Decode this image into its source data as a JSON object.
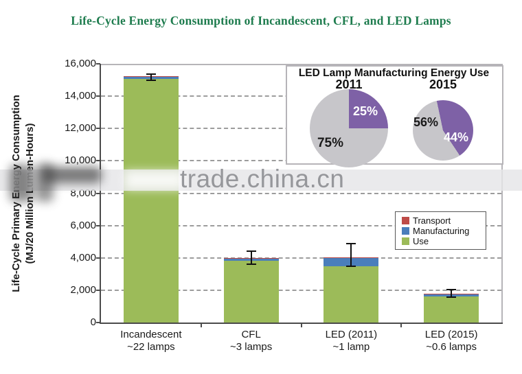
{
  "title": {
    "text": "Life-Cycle Energy Consumption of Incandescent, CFL, and LED Lamps",
    "color": "#1E7C4E"
  },
  "watermark": {
    "text": "trade.china.cn"
  },
  "chart_data": {
    "type": "bar",
    "stacked": true,
    "title": "Life-Cycle Energy Consumption of Incandescent, CFL, and LED Lamps",
    "ylabel": "Life-Cycle Primary Energy Consumption (MJ/20 Million Lumen-Hours)",
    "ylabel_lines": [
      "Life-Cycle Primary Energy Consumption",
      "(MJ/20 Million Lumen-Hours)"
    ],
    "ylim": [
      0,
      16000
    ],
    "ytick_step": 2000,
    "ytick_labels": [
      "0",
      "2,000",
      "4,000",
      "6,000",
      "8,000",
      "10,000",
      "12,000",
      "14,000",
      "16,000"
    ],
    "grid": "horizontal-dashed",
    "categories": [
      "Incandescent",
      "CFL",
      "LED (2011)",
      "LED (2015)"
    ],
    "category_sublabels": [
      "~22 lamps",
      "~3 lamps",
      "~1 lamp",
      "~0.6 lamps"
    ],
    "series": [
      {
        "name": "Use",
        "color": "#9CBB59",
        "values": [
          15070,
          3820,
          3500,
          1610
        ]
      },
      {
        "name": "Manufacturing",
        "color": "#4A7EBB",
        "values": [
          120,
          130,
          510,
          170
        ]
      },
      {
        "name": "Transport",
        "color": "#BE4B48",
        "values": [
          40,
          40,
          10,
          10
        ]
      }
    ],
    "totals_approx": [
      15230,
      3990,
      4020,
      1790
    ],
    "error_bars": {
      "low": [
        15000,
        3600,
        3500,
        1560
      ],
      "high": [
        15350,
        4400,
        4900,
        2050
      ]
    },
    "legend": {
      "position": "middle-right",
      "entries": [
        {
          "label": "Transport",
          "color": "#BE4B48"
        },
        {
          "label": "Manufacturing",
          "color": "#4A7EBB"
        },
        {
          "label": "Use",
          "color": "#9CBB59"
        }
      ]
    }
  },
  "inset": {
    "title": "LED Lamp Manufacturing Energy Use",
    "pies": [
      {
        "year": "2011",
        "start_angle": 0,
        "slices": [
          {
            "name": "manufacturing-share",
            "label": "25%",
            "value": 25,
            "color": "#7E61A6",
            "text_color": "#ffffff"
          },
          {
            "name": "remainder",
            "label": "75%",
            "value": 75,
            "color": "#C7C6CA",
            "text_color": "#1a1a1a"
          }
        ]
      },
      {
        "year": "2015",
        "start_angle": -12,
        "slices": [
          {
            "name": "manufacturing-share",
            "label": "44%",
            "value": 44,
            "color": "#7E61A6",
            "text_color": "#ffffff"
          },
          {
            "name": "remainder",
            "label": "56%",
            "value": 56,
            "color": "#C7C6CA",
            "text_color": "#1a1a1a"
          }
        ]
      }
    ]
  }
}
